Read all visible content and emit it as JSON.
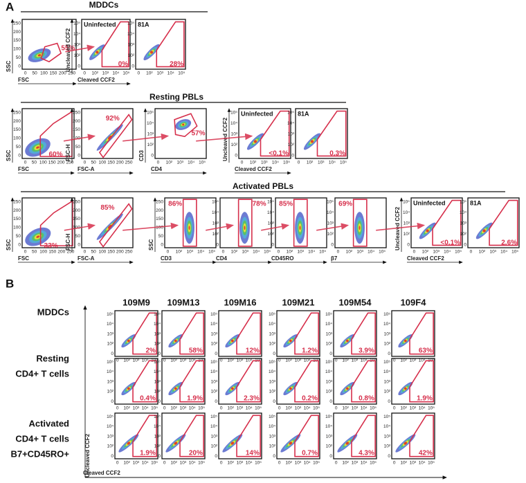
{
  "tick_sets": {
    "lin": [
      "0",
      "50",
      "100",
      "150",
      "200",
      "250"
    ],
    "log": [
      "0",
      "10²",
      "10³",
      "10⁴",
      "10⁵"
    ]
  },
  "panel_a": {
    "label": "A",
    "rows": [
      {
        "title": "MDDCs",
        "plots": [
          {
            "xlabel": "FSC",
            "ylabel": "SSC",
            "gate": "55%"
          },
          {
            "title": "Uninfected",
            "xlabel": "Cleaved CCF2",
            "ylabel": "Uncleaved CCF2",
            "gate": "0%"
          },
          {
            "title": "81A",
            "gate": "28%"
          }
        ]
      },
      {
        "title": "Resting  PBLs",
        "plots": [
          {
            "xlabel": "FSC",
            "ylabel": "SSC",
            "gate": "60%"
          },
          {
            "xlabel": "FSC-A",
            "ylabel": "FSC-H",
            "gate": "92%"
          },
          {
            "xlabel": "CD4",
            "ylabel": "CD3",
            "gate": "57%"
          },
          {
            "title": "Uninfected",
            "xlabel": "Cleaved CCF2",
            "ylabel": "Uncleaved CCF2",
            "gate": "<0.1%"
          },
          {
            "title": "81A",
            "gate": "0.3%"
          }
        ]
      },
      {
        "title": "Activated PBLs",
        "plots": [
          {
            "xlabel": "FSC",
            "ylabel": "SSC",
            "gate": "33%"
          },
          {
            "xlabel": "FSC-A",
            "ylabel": "FSC-H",
            "gate": "85%"
          },
          {
            "xlabel": "CD3",
            "ylabel": "SSC",
            "gate": "86%"
          },
          {
            "xlabel": "CD4",
            "gate": "78%"
          },
          {
            "xlabel": "CD45RO",
            "gate": "85%"
          },
          {
            "xlabel": "β7",
            "gate": "69%"
          },
          {
            "title": "Uninfected",
            "xlabel": "Cleaved CCF2",
            "ylabel": "Uncleaved CCF2",
            "gate": "<0.1%"
          },
          {
            "title": "81A",
            "gate": "2.6%"
          }
        ]
      }
    ]
  },
  "panel_b": {
    "label": "B",
    "columns": [
      "109M9",
      "109M13",
      "109M16",
      "109M21",
      "109M54",
      "109F4"
    ],
    "rows": [
      {
        "label": [
          "MDDCs"
        ],
        "values": [
          "2%",
          "58%",
          "12%",
          "1.2%",
          "3.9%",
          "63%"
        ]
      },
      {
        "label": [
          "Resting",
          "CD4+ T cells"
        ],
        "values": [
          "0.4%",
          "1.9%",
          "2.3%",
          "0.2%",
          "0.8%",
          "1.9%"
        ]
      },
      {
        "label": [
          "Activated",
          "CD4+ T cells",
          "B7+CD45RO+"
        ],
        "values": [
          "1.9%",
          "20%",
          "14%",
          "0.7%",
          "4.3%",
          "42%"
        ]
      }
    ],
    "ylabel": "Uncleaved CCF2",
    "xlabel": "Cleaved CCF2"
  }
}
